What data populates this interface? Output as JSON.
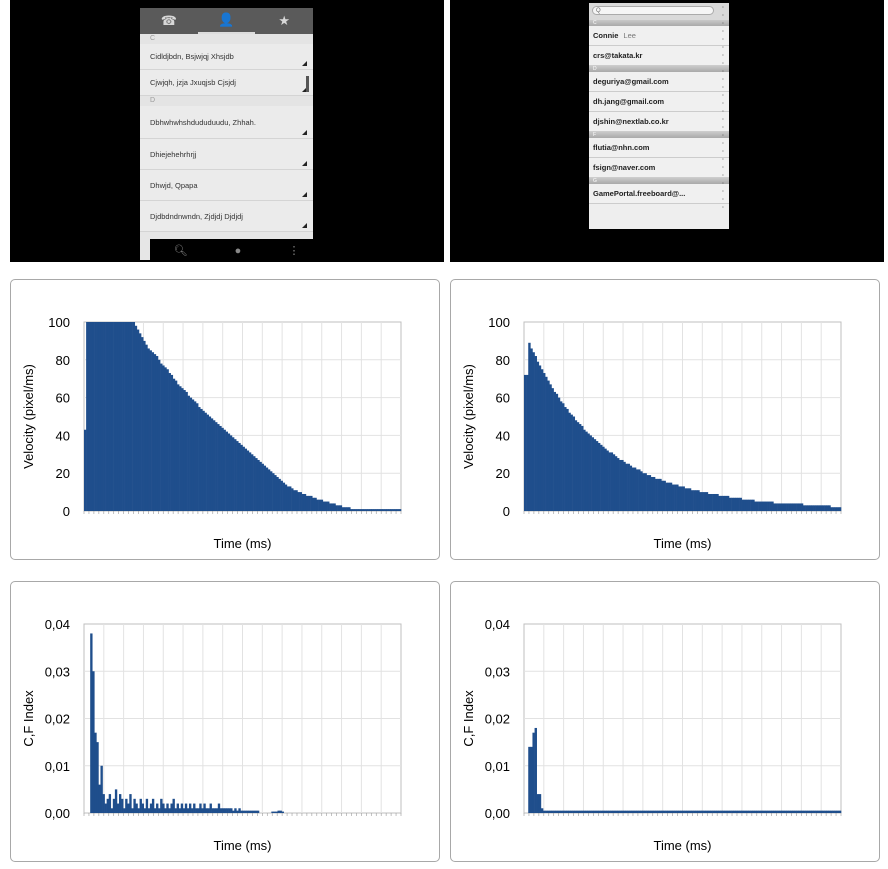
{
  "left_phone": {
    "tabs": [
      "☎",
      "👤",
      "★"
    ],
    "sections": [
      {
        "letter": "C",
        "contacts": [
          "Cidldjbdn, Bsjwjqj Xhsjdb",
          "Cjwjqh, jzja Jxuqjsb Cjsjdj"
        ]
      },
      {
        "letter": "D",
        "contacts": [
          "Dbhwhwhshdududuudu, Zhhah.",
          "Dhiejehehrhrjj",
          "Dhwjd, Qpapa",
          "Djdbdndnwndn, Zjdjdj Djdjdj"
        ]
      }
    ],
    "bottom_icons": [
      "search-icon",
      "person-icon",
      "menu-icon"
    ]
  },
  "right_phone": {
    "search_placeholder": "Q",
    "sections": [
      {
        "letter": "C",
        "rows": [
          {
            "name": "Connie",
            "sub": "Lee"
          },
          {
            "name": "crs@takata.kr",
            "sub": ""
          }
        ]
      },
      {
        "letter": "D",
        "rows": [
          {
            "name": "deguriya@gmail.com",
            "sub": ""
          },
          {
            "name": "dh.jang@gmail.com",
            "sub": ""
          },
          {
            "name": "djshin@nextlab.co.kr",
            "sub": ""
          }
        ]
      },
      {
        "letter": "F",
        "rows": [
          {
            "name": "flutia@nhn.com",
            "sub": ""
          },
          {
            "name": "fsign@naver.com",
            "sub": ""
          }
        ]
      },
      {
        "letter": "G",
        "rows": [
          {
            "name": "GamePortal.freeboard@...",
            "sub": ""
          }
        ]
      }
    ]
  },
  "chart_data": [
    {
      "type": "bar",
      "title": "",
      "xlabel": "Time (ms)",
      "ylabel": "Velocity (pixel/ms)",
      "ylim": [
        0,
        100
      ],
      "yticks": [
        "0",
        "20",
        "40",
        "60",
        "80",
        "100"
      ],
      "grid": true,
      "color": "#1f4e8c",
      "n_bins": 150,
      "values": [
        43,
        100,
        100,
        100,
        100,
        100,
        100,
        100,
        100,
        100,
        100,
        100,
        100,
        100,
        100,
        100,
        100,
        100,
        100,
        100,
        100,
        100,
        100,
        100,
        98,
        96,
        94,
        92,
        90,
        88,
        86,
        85,
        84,
        83,
        82,
        80,
        78,
        77,
        76,
        75,
        73,
        72,
        70,
        69,
        67,
        66,
        65,
        64,
        63,
        61,
        60,
        59,
        58,
        57,
        55,
        54,
        53,
        52,
        51,
        50,
        49,
        48,
        47,
        46,
        45,
        44,
        43,
        42,
        41,
        40,
        39,
        38,
        37,
        36,
        35,
        34,
        33,
        32,
        31,
        30,
        29,
        28,
        27,
        26,
        25,
        24,
        23,
        22,
        21,
        20,
        19,
        18,
        17,
        16,
        15,
        14,
        13,
        13,
        12,
        11,
        11,
        10,
        10,
        9,
        9,
        8,
        8,
        8,
        7,
        7,
        6,
        6,
        6,
        5,
        5,
        5,
        4,
        4,
        4,
        3,
        3,
        3,
        2,
        2,
        2,
        2,
        1,
        1,
        1,
        1,
        1,
        1,
        1,
        1,
        1,
        1,
        1,
        1,
        1,
        1,
        1,
        1,
        1,
        1,
        1,
        1,
        1,
        1,
        1,
        1
      ]
    },
    {
      "type": "bar",
      "title": "",
      "xlabel": "Time (ms)",
      "ylabel": "Velocity (pixel/ms)",
      "ylim": [
        0,
        100
      ],
      "yticks": [
        "0",
        "20",
        "40",
        "60",
        "80",
        "100"
      ],
      "grid": true,
      "color": "#1f4e8c",
      "n_bins": 150,
      "values": [
        72,
        72,
        89,
        86,
        84,
        82,
        79,
        77,
        75,
        73,
        71,
        69,
        67,
        65,
        63,
        62,
        60,
        58,
        57,
        55,
        54,
        52,
        51,
        50,
        48,
        47,
        46,
        45,
        43,
        42,
        41,
        40,
        39,
        38,
        37,
        36,
        35,
        34,
        33,
        32,
        31,
        31,
        30,
        29,
        28,
        27,
        27,
        26,
        25,
        25,
        24,
        23,
        23,
        22,
        22,
        21,
        20,
        20,
        19,
        19,
        18,
        18,
        17,
        17,
        17,
        16,
        16,
        15,
        15,
        15,
        14,
        14,
        14,
        13,
        13,
        13,
        12,
        12,
        12,
        11,
        11,
        11,
        11,
        10,
        10,
        10,
        10,
        9,
        9,
        9,
        9,
        9,
        8,
        8,
        8,
        8,
        8,
        7,
        7,
        7,
        7,
        7,
        7,
        6,
        6,
        6,
        6,
        6,
        6,
        5,
        5,
        5,
        5,
        5,
        5,
        5,
        5,
        5,
        4,
        4,
        4,
        4,
        4,
        4,
        4,
        4,
        4,
        4,
        4,
        4,
        4,
        4,
        3,
        3,
        3,
        3,
        3,
        3,
        3,
        3,
        3,
        3,
        3,
        3,
        3,
        2,
        2,
        2,
        2,
        2
      ]
    },
    {
      "type": "bar",
      "title": "",
      "xlabel": "Time (ms)",
      "ylabel": "C,F Index",
      "ylim": [
        0,
        0.04
      ],
      "yticks": [
        "0,00",
        "0,01",
        "0,02",
        "0,03",
        "0,04"
      ],
      "grid": true,
      "color": "#1f4e8c",
      "n_bins": 150,
      "values": [
        0,
        0,
        0,
        0.038,
        0.03,
        0.017,
        0.015,
        0.006,
        0.01,
        0.004,
        0.002,
        0.003,
        0.004,
        0.001,
        0.003,
        0.005,
        0.002,
        0.004,
        0.003,
        0.001,
        0.003,
        0.002,
        0.004,
        0.001,
        0.003,
        0.002,
        0.001,
        0.003,
        0.002,
        0.001,
        0.003,
        0.001,
        0.002,
        0.003,
        0.001,
        0.002,
        0.001,
        0.003,
        0.002,
        0.001,
        0.002,
        0.001,
        0.002,
        0.003,
        0.001,
        0.002,
        0.001,
        0.002,
        0.001,
        0.002,
        0.001,
        0.002,
        0.001,
        0.002,
        0.001,
        0.001,
        0.002,
        0.001,
        0.002,
        0.001,
        0.001,
        0.002,
        0.001,
        0.001,
        0.001,
        0.002,
        0.001,
        0.001,
        0.001,
        0.001,
        0.001,
        0.001,
        0.0005,
        0.001,
        0.0005,
        0.001,
        0.0005,
        0.0005,
        0.0005,
        0.0005,
        0.0005,
        0.0005,
        0.0005,
        0.0005,
        0.0005,
        0,
        0,
        0,
        0,
        0,
        0,
        0.0003,
        0.0003,
        0.0003,
        0.0005,
        0.0005,
        0.0003,
        0,
        0,
        0,
        0,
        0,
        0,
        0,
        0,
        0,
        0,
        0,
        0,
        0,
        0,
        0,
        0,
        0,
        0,
        0,
        0,
        0,
        0,
        0,
        0,
        0,
        0,
        0,
        0,
        0,
        0,
        0,
        0,
        0,
        0,
        0,
        0,
        0,
        0,
        0,
        0,
        0,
        0,
        0,
        0,
        0,
        0,
        0,
        0,
        0,
        0,
        0,
        0,
        0,
        0,
        0,
        0,
        0
      ]
    },
    {
      "type": "bar",
      "title": "",
      "xlabel": "Time (ms)",
      "ylabel": "C,F Index",
      "ylim": [
        0,
        0.04
      ],
      "yticks": [
        "0,00",
        "0,01",
        "0,02",
        "0,03",
        "0,04"
      ],
      "grid": true,
      "color": "#1f4e8c",
      "n_bins": 150,
      "values": [
        0,
        0,
        0.014,
        0.014,
        0.017,
        0.018,
        0.004,
        0.004,
        0.001,
        0.0005,
        0.0005,
        0.0005,
        0.0005,
        0.0005,
        0.0005,
        0.0005,
        0.0005,
        0.0005,
        0.0005,
        0.0005,
        0.0005,
        0.0005,
        0.0005,
        0.0005,
        0.0005,
        0.0005,
        0.0005,
        0.0005,
        0.0005,
        0.0005,
        0.0005,
        0.0005,
        0.0005,
        0.0005,
        0.0005,
        0.0005,
        0.0005,
        0.0005,
        0.0005,
        0.0005,
        0.0005,
        0.0005,
        0.0005,
        0.0005,
        0.0005,
        0.0005,
        0.0005,
        0.0005,
        0.0005,
        0.0005,
        0.0005,
        0.0005,
        0.0005,
        0.0005,
        0.0005,
        0.0005,
        0.0005,
        0.0005,
        0.0005,
        0.0005,
        0.0005,
        0.0005,
        0.0005,
        0.0005,
        0.0005,
        0.0005,
        0.0005,
        0.0005,
        0.0005,
        0.0005,
        0.0005,
        0.0005,
        0.0005,
        0.0005,
        0.0005,
        0.0005,
        0.0005,
        0.0005,
        0.0005,
        0.0005,
        0.0005,
        0.0005,
        0.0005,
        0.0005,
        0.0005,
        0.0005,
        0.0005,
        0.0005,
        0.0005,
        0.0005,
        0.0005,
        0.0005,
        0.0005,
        0.0005,
        0.0005,
        0.0005,
        0.0005,
        0.0005,
        0.0005,
        0.0005,
        0.0005,
        0.0005,
        0.0005,
        0.0005,
        0.0005,
        0.0005,
        0.0005,
        0.0005,
        0.0005,
        0.0005,
        0.0005,
        0.0005,
        0.0005,
        0.0005,
        0.0005,
        0.0005,
        0.0005,
        0.0005,
        0.0005,
        0.0005,
        0.0005,
        0.0005,
        0.0005,
        0.0005,
        0.0005,
        0.0005,
        0.0005,
        0.0005,
        0.0005,
        0.0005,
        0.0005,
        0.0005,
        0.0005,
        0.0005,
        0.0005,
        0.0005,
        0.0005,
        0.0005,
        0.0005,
        0.0005,
        0.0005,
        0.0005,
        0.0005,
        0.0005,
        0.0005,
        0.0005,
        0.0005,
        0.0005,
        0.0005,
        0.0005
      ]
    }
  ]
}
